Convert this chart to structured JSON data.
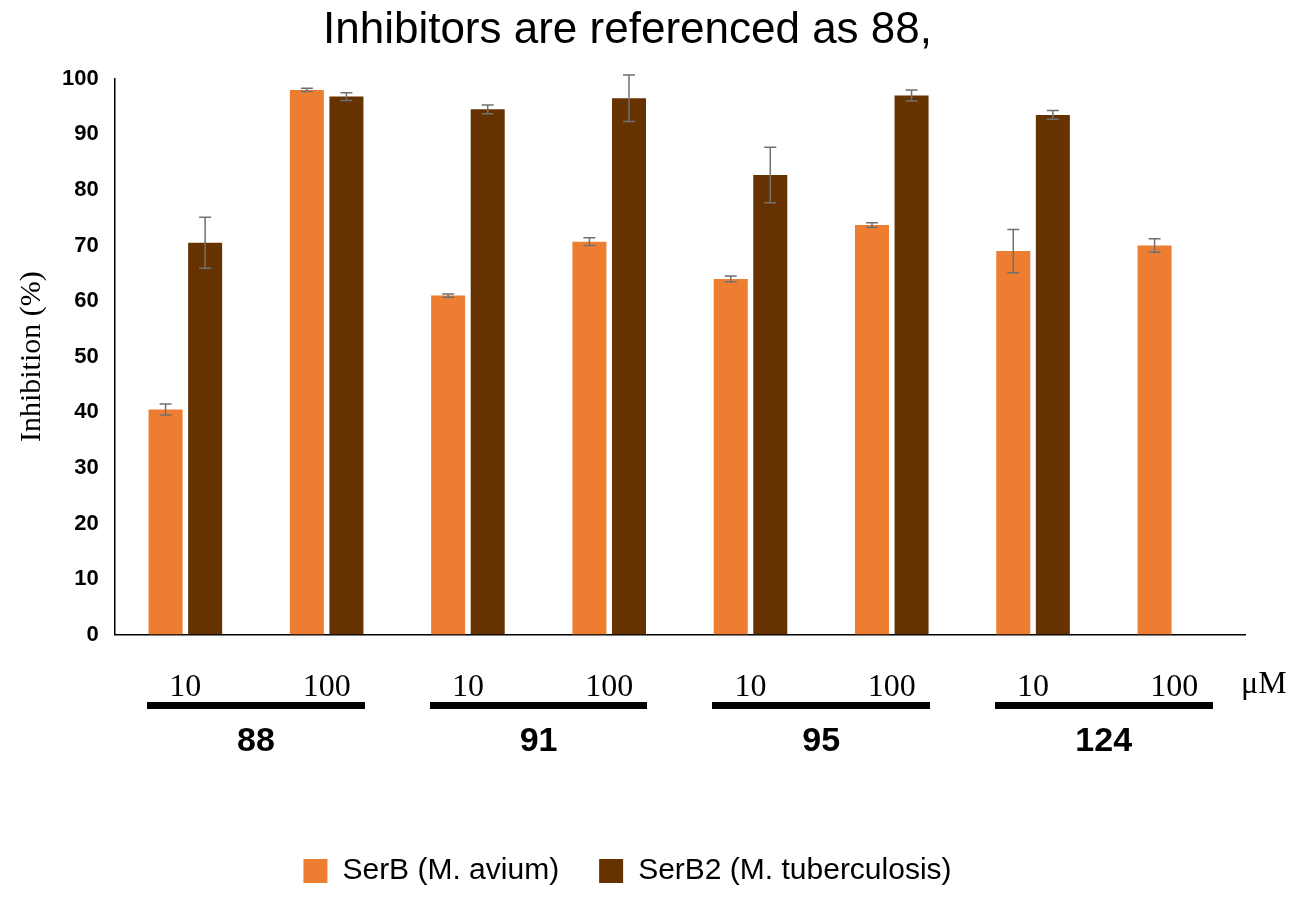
{
  "chart_data": {
    "type": "bar",
    "title": "Inhibitors are referenced as 88,",
    "ylabel": "Inhibition (%)",
    "categories": [
      "10",
      "100",
      "10",
      "100",
      "10",
      "100",
      "10",
      "100"
    ],
    "series": [
      {
        "name": "SerB (M. avium)",
        "color": "#ed7d31",
        "values": [
          40.5,
          98,
          61,
          70.7,
          64,
          73.7,
          69,
          70
        ],
        "errors": [
          1,
          0.3,
          0.3,
          0.7,
          0.5,
          0.4,
          3.9,
          1.2
        ]
      },
      {
        "name": "SerB2 (M. tuberculosis)",
        "color": "#663300",
        "values": [
          70.5,
          96.8,
          94.5,
          96.5,
          82.7,
          97,
          93.5,
          null
        ],
        "errors": [
          4.6,
          0.7,
          0.8,
          4.2,
          5,
          1,
          0.8,
          null
        ]
      }
    ],
    "ylim": [
      0,
      100
    ],
    "yticks": [
      0,
      10,
      20,
      30,
      40,
      50,
      60,
      70,
      80,
      90,
      100
    ],
    "grid": false,
    "legend": "bottom",
    "annotations": [
      "88",
      "91",
      "95",
      "124",
      "μM"
    ]
  }
}
